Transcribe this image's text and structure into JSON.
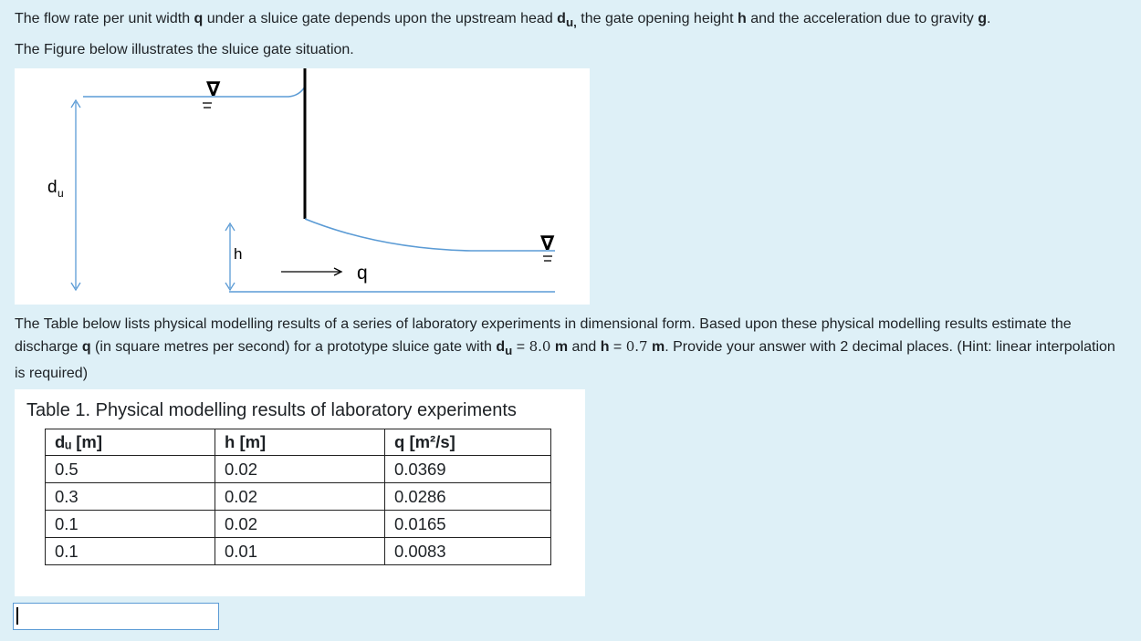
{
  "question": {
    "intro": {
      "t1": "The flow rate per unit width ",
      "q": "q",
      "t2": " under a sluice gate depends upon the upstream head ",
      "du_d": "d",
      "du_u": "u,",
      "t3": " the gate opening height ",
      "h": "h",
      "t4": " and the acceleration due to gravity ",
      "g": "g",
      "t5": "."
    },
    "figure_intro": "The Figure below illustrates the sluice gate situation.",
    "task": {
      "t1": "The Table below lists physical modelling results of a series of laboratory experiments in dimensional form. Based upon these physical modelling results estimate the discharge ",
      "q": "q",
      "t2": " (in square metres per second) for a prototype sluice gate with ",
      "du_d": "d",
      "du_u": "u",
      "eq1": " = ",
      "du_val": "8.0",
      "du_unit": " m",
      "t3": " and ",
      "h": "h",
      "eq2": " = ",
      "h_val": "0.7",
      "h_unit": " m",
      "t4": ". Provide your answer with 2 decimal places. (Hint: linear interpolation is required)"
    }
  },
  "figure": {
    "label_du_d": "d",
    "label_du_u": "u",
    "label_h": "h",
    "label_q": "q",
    "water_symbol": "∇"
  },
  "table": {
    "caption": "Table 1. Physical modelling results of laboratory experiments",
    "headers": [
      "dᵤ [m]",
      "h [m]",
      "q [m²/s]"
    ],
    "rows": [
      [
        "0.5",
        "0.02",
        "0.0369"
      ],
      [
        "0.3",
        "0.02",
        "0.0286"
      ],
      [
        "0.1",
        "0.02",
        "0.0165"
      ],
      [
        "0.1",
        "0.01",
        "0.0083"
      ]
    ]
  },
  "answer": {
    "value": ""
  }
}
